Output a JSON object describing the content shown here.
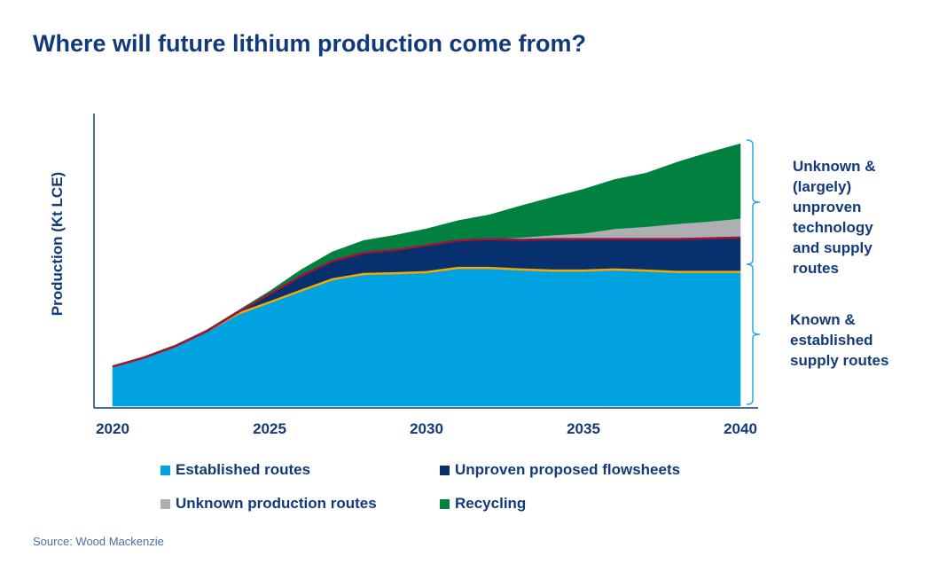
{
  "title": "Where will future lithium production come from?",
  "source": "Source: Wood Mackenzie",
  "annotations": {
    "upper": "Unknown & (largely) unproven technology and supply routes",
    "lower": "Known & established supply routes"
  },
  "chart_data": {
    "type": "area",
    "stacked": true,
    "title": "Where will future lithium production come from?",
    "xlabel": "",
    "ylabel": "Production (Kt LCE)",
    "x": [
      2020,
      2021,
      2022,
      2023,
      2024,
      2025,
      2026,
      2027,
      2028,
      2029,
      2030,
      2031,
      2032,
      2033,
      2034,
      2035,
      2036,
      2037,
      2038,
      2039,
      2040
    ],
    "xticks": [
      "2020",
      "2025",
      "2030",
      "2035",
      "2040"
    ],
    "xlim": [
      2020,
      2040
    ],
    "ylim": [
      0,
      100
    ],
    "y_units_note_visible": false,
    "grid": false,
    "legend_position": "bottom",
    "series": [
      {
        "name": "Established routes",
        "color": "#00a3e0",
        "values": [
          15,
          18.3,
          22.7,
          28.3,
          35,
          39.3,
          43.7,
          48,
          50,
          50.3,
          50.7,
          52.3,
          52.3,
          51.7,
          51.3,
          51.3,
          51.7,
          51.3,
          50.8,
          50.8,
          50.8
        ]
      },
      {
        "name": "Unproven proposed flowsheets",
        "color": "#06316e",
        "values": [
          0,
          0,
          0,
          0,
          0.6,
          3.1,
          5.6,
          6.9,
          8,
          8.8,
          10.1,
          10.4,
          10.9,
          11.2,
          11.9,
          11.9,
          11.5,
          11.9,
          12.4,
          12.7,
          13.0
        ]
      },
      {
        "name": "Unknown production routes",
        "color": "#aeafb2",
        "values": [
          0,
          0,
          0,
          0,
          0,
          0,
          0,
          0,
          0,
          0,
          0,
          0,
          0,
          0.9,
          1.5,
          2.2,
          3.9,
          4.7,
          5.8,
          6.4,
          7.2
        ]
      },
      {
        "name": "Recycling",
        "color": "#008140",
        "values": [
          0.3,
          0.5,
          0.5,
          0.6,
          0.6,
          1.1,
          2.3,
          3.5,
          4.7,
          5.6,
          6.3,
          7.5,
          9.2,
          12,
          14.3,
          16.7,
          18.7,
          20.3,
          23.4,
          26.1,
          28.3
        ]
      }
    ],
    "boundary_lines": [
      {
        "on_top_of": "Established routes",
        "color": "#f5a800"
      },
      {
        "on_top_of": "Unproven proposed flowsheets",
        "color": "#a3123a"
      }
    ]
  }
}
